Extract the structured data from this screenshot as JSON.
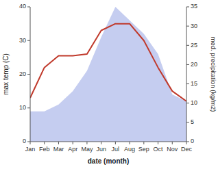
{
  "chart_data": {
    "type": "line",
    "x_label": "date (month)",
    "y_label": "max temp (C)",
    "y2_label": "med. precipitation (kg/m2)",
    "categories": [
      "Jan",
      "Feb",
      "Mar",
      "Apr",
      "May",
      "Jun",
      "Jul",
      "Aug",
      "Sep",
      "Oct",
      "Nov",
      "Dec"
    ],
    "series": [
      {
        "type": "area",
        "color": "#c5cdf0",
        "values": [
          9,
          9,
          11,
          15,
          21,
          31,
          40,
          36,
          32,
          26,
          14,
          12
        ]
      },
      {
        "type": "line",
        "color": "#c0392b",
        "values": [
          13,
          22,
          25.5,
          25.5,
          26,
          33,
          35,
          35,
          30,
          22,
          15,
          12
        ]
      }
    ],
    "ylim": [
      0,
      40
    ],
    "yticks": [
      0,
      10,
      20,
      30,
      40
    ],
    "y2lim": [
      0,
      35
    ],
    "y2ticks": [
      0,
      5,
      10,
      15,
      20,
      25,
      30,
      35
    ],
    "grid": false
  }
}
